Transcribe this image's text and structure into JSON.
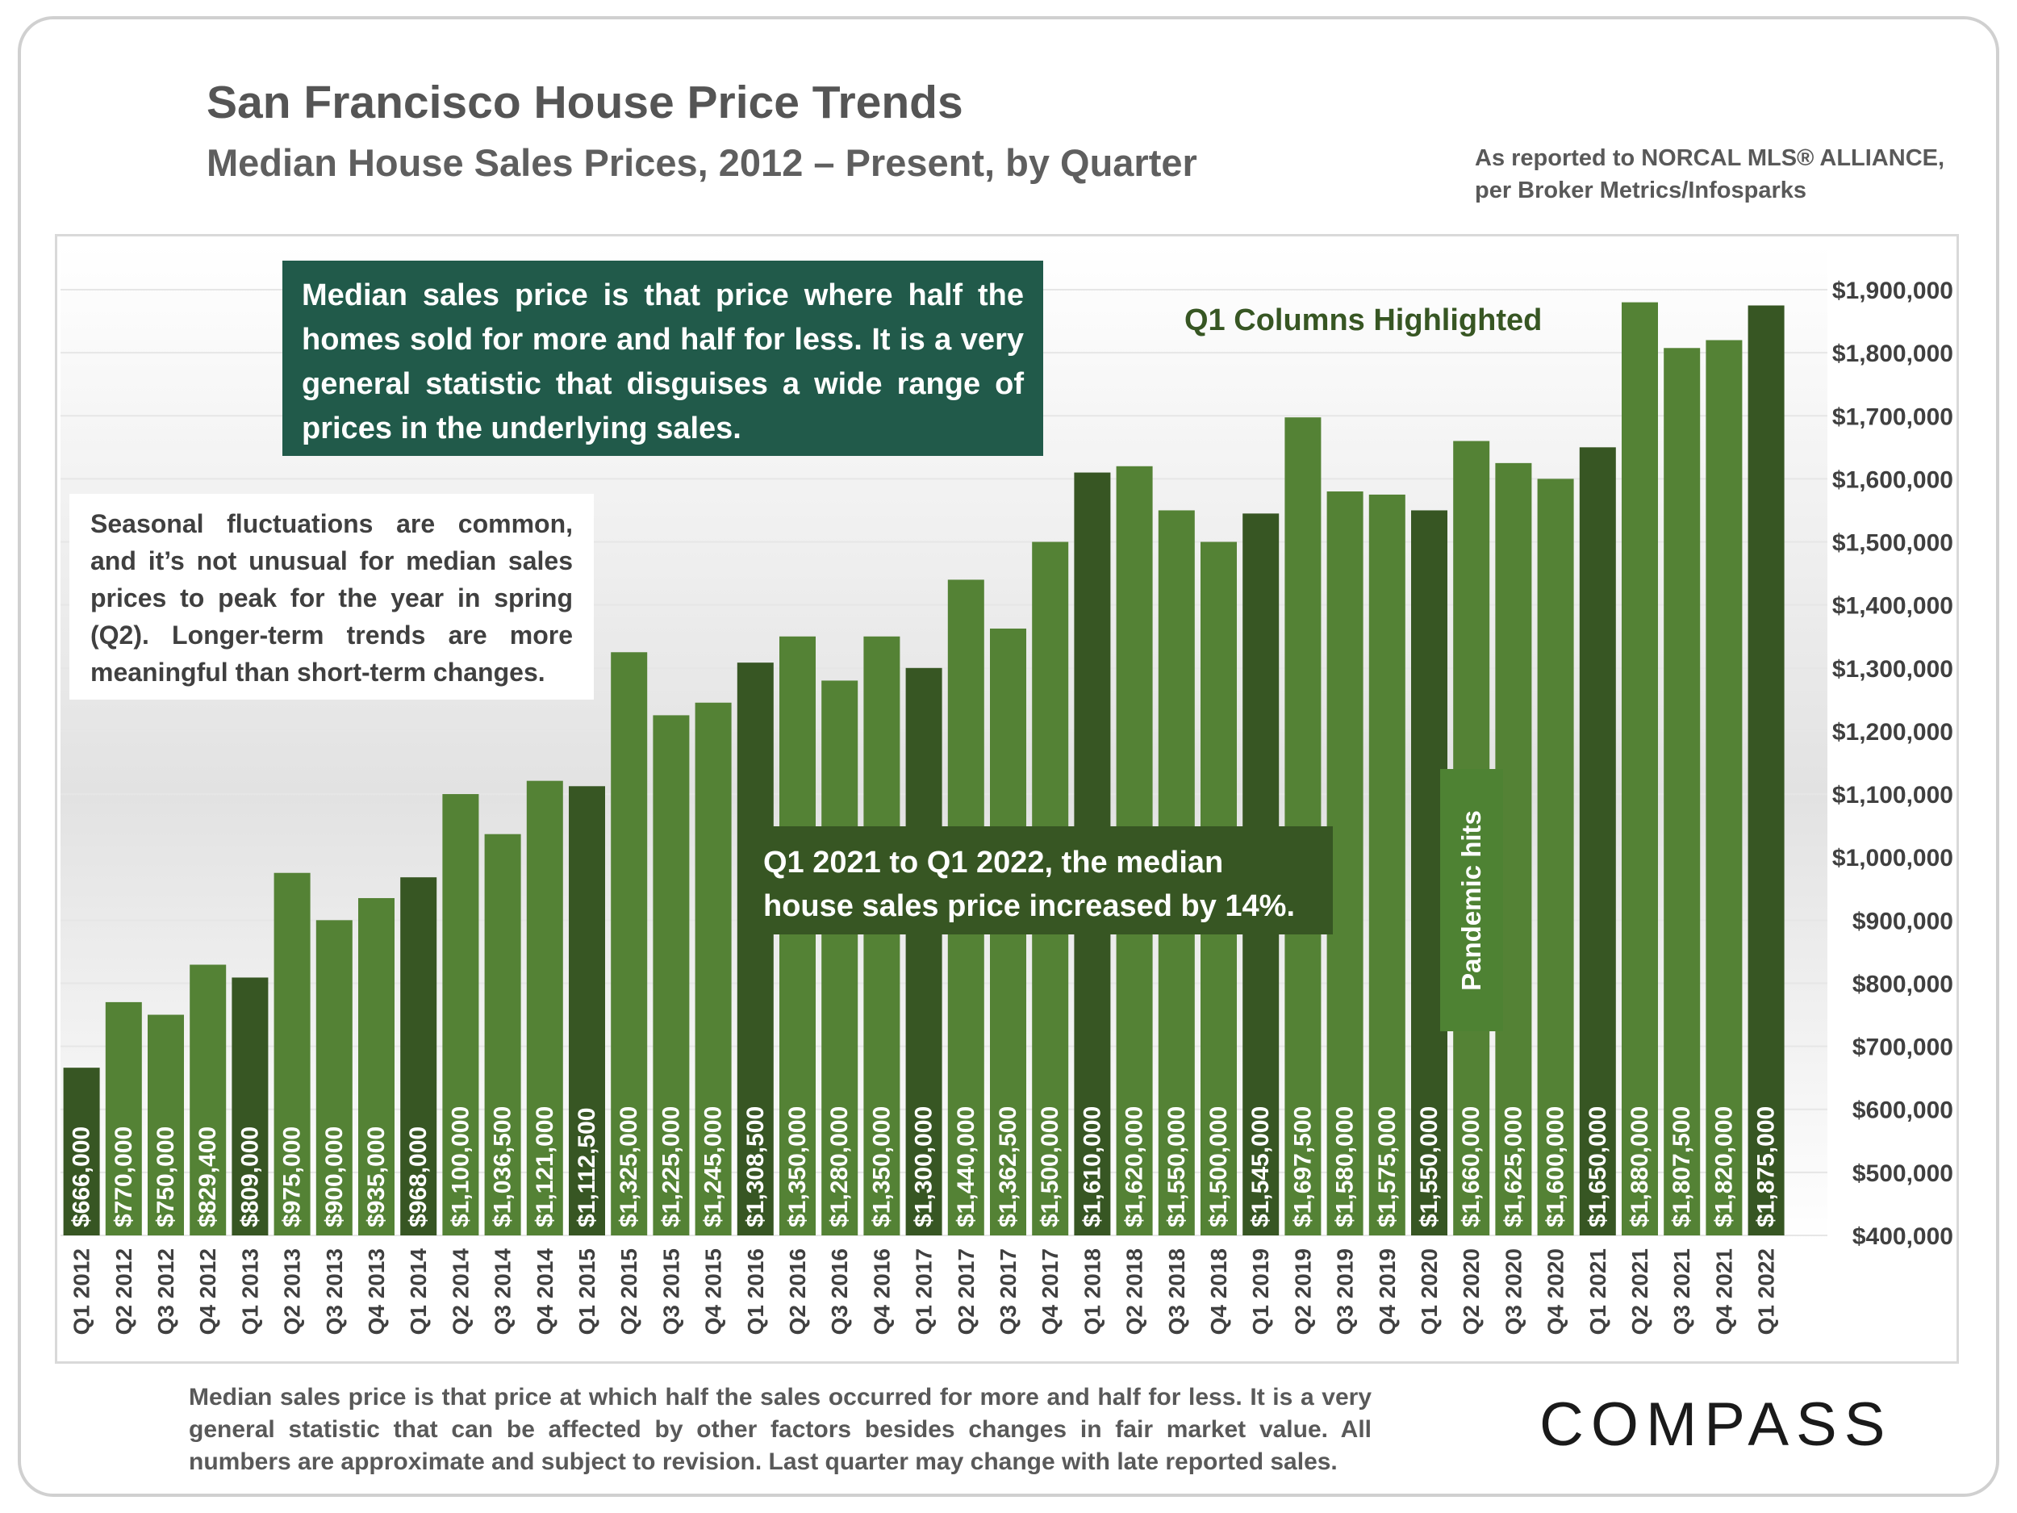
{
  "header": {
    "title": "San Francisco House Price Trends",
    "subtitle": "Median House Sales Prices, 2012 – Present, by Quarter",
    "source_line1": "As reported to NORCAL MLS® ALLIANCE,",
    "source_line2": "per Broker Metrics/Infosparks"
  },
  "annotations": {
    "median_definition": "Median sales price is that price where half the homes sold for more and half for less. It is a very general statistic that disguises a wide range of prices in the underlying sales.",
    "seasonal": "Seasonal fluctuations are common, and it’s not unusual for median sales prices to peak for the year in spring (Q2). Longer-term trends are more meaningful than short-term changes.",
    "growth": "Q1 2021 to Q1 2022, the median house sales price increased by 14%.",
    "pandemic": "Pandemic hits",
    "q1_highlight": "Q1 Columns Highlighted"
  },
  "footnote": "Median sales price is that price at which half the sales occurred for more and half for less. It is a very general statistic that can be affected by other factors besides changes in fair market value. All numbers are approximate and subject to revision. Last quarter may change with late reported sales.",
  "logo": "COMPASS",
  "colors": {
    "bar_regular": "#548235",
    "bar_q1": "#375623",
    "gridline": "#e6e6e6",
    "axis_text": "#404040"
  },
  "chart_data": {
    "type": "bar",
    "title": "San Francisco House Price Trends",
    "subtitle": "Median House Sales Prices, 2012 – Present, by Quarter",
    "xlabel": "",
    "ylabel": "",
    "ylim": [
      400000,
      1900000
    ],
    "y_ticks": [
      400000,
      500000,
      600000,
      700000,
      800000,
      900000,
      1000000,
      1100000,
      1200000,
      1300000,
      1400000,
      1500000,
      1600000,
      1700000,
      1800000,
      1900000
    ],
    "y_tick_labels": [
      "$400,000",
      "$500,000",
      "$600,000",
      "$700,000",
      "$800,000",
      "$900,000",
      "$1,000,000",
      "$1,100,000",
      "$1,200,000",
      "$1,300,000",
      "$1,400,000",
      "$1,500,000",
      "$1,600,000",
      "$1,700,000",
      "$1,800,000",
      "$1,900,000"
    ],
    "y_axis_position": "right",
    "grid": true,
    "categories": [
      "Q1 2012",
      "Q2 2012",
      "Q3 2012",
      "Q4 2012",
      "Q1 2013",
      "Q2 2013",
      "Q3 2013",
      "Q4 2013",
      "Q1 2014",
      "Q2 2014",
      "Q3 2014",
      "Q4 2014",
      "Q1 2015",
      "Q2 2015",
      "Q3 2015",
      "Q4 2015",
      "Q1 2016",
      "Q2 2016",
      "Q3 2016",
      "Q4 2016",
      "Q1 2017",
      "Q2 2017",
      "Q3 2017",
      "Q4 2017",
      "Q1 2018",
      "Q2 2018",
      "Q3 2018",
      "Q4 2018",
      "Q1 2019",
      "Q2 2019",
      "Q3 2019",
      "Q4 2019",
      "Q1 2020",
      "Q2 2020",
      "Q3 2020",
      "Q4 2020",
      "Q1 2021",
      "Q2 2021",
      "Q3 2021",
      "Q4 2021",
      "Q1 2022"
    ],
    "values": [
      666000,
      770000,
      750000,
      829400,
      809000,
      975000,
      900000,
      935000,
      968000,
      1100000,
      1036500,
      1121000,
      1112500,
      1325000,
      1225000,
      1245000,
      1308500,
      1350000,
      1280000,
      1350000,
      1300000,
      1440000,
      1362500,
      1500000,
      1610000,
      1620000,
      1550000,
      1500000,
      1545000,
      1697500,
      1580000,
      1575000,
      1550000,
      1660000,
      1625000,
      1600000,
      1650000,
      1880000,
      1807500,
      1820000,
      1875000
    ],
    "value_labels": [
      "$666,000",
      "$770,000",
      "$750,000",
      "$829,400",
      "$809,000",
      "$975,000",
      "$900,000",
      "$935,000",
      "$968,000",
      "$1,100,000",
      "$1,036,500",
      "$1,121,000",
      "$1,112,500",
      "$1,325,000",
      "$1,225,000",
      "$1,245,000",
      "$1,308,500",
      "$1,350,000",
      "$1,280,000",
      "$1,350,000",
      "$1,300,000",
      "$1,440,000",
      "$1,362,500",
      "$1,500,000",
      "$1,610,000",
      "$1,620,000",
      "$1,550,000",
      "$1,500,000",
      "$1,545,000",
      "$1,697,500",
      "$1,580,000",
      "$1,575,000",
      "$1,550,000",
      "$1,660,000",
      "$1,625,000",
      "$1,600,000",
      "$1,650,000",
      "$1,880,000",
      "$1,807,500",
      "$1,820,000",
      "$1,875,000"
    ],
    "highlighted": "Q1 columns"
  }
}
